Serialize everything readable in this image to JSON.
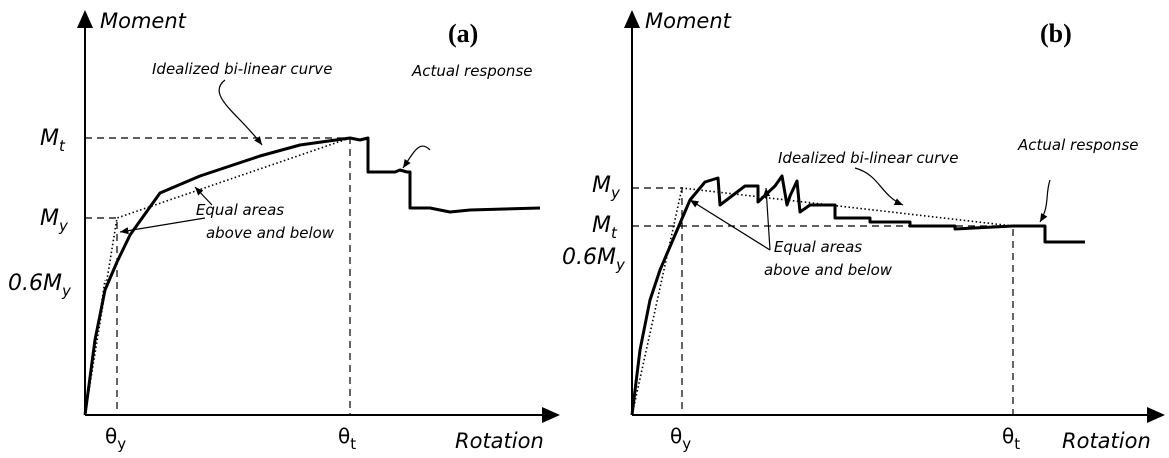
{
  "panels": [
    {
      "label": "(a)",
      "y_axis": "Moment",
      "x_axis": "Rotation",
      "y_labels": [
        {
          "base": "M",
          "sub": "t"
        },
        {
          "base": "M",
          "sub": "y"
        },
        {
          "base": "0.6M",
          "sub": "y"
        }
      ],
      "x_labels": [
        {
          "base": "θ",
          "sub": "y"
        },
        {
          "base": "θ",
          "sub": "t"
        }
      ],
      "annotations": [
        "Idealized bi-linear curve",
        "Actual response",
        "Equal areas",
        "above and below"
      ]
    },
    {
      "label": "(b)",
      "y_axis": "Moment",
      "x_axis": "Rotation",
      "y_labels": [
        {
          "base": "M",
          "sub": "y"
        },
        {
          "base": "M",
          "sub": "t"
        },
        {
          "base": "0.6M",
          "sub": "y"
        }
      ],
      "x_labels": [
        {
          "base": "θ",
          "sub": "y"
        },
        {
          "base": "θ",
          "sub": "t"
        }
      ],
      "annotations": [
        "Idealized bi-linear curve",
        "Actual response",
        "Equal areas",
        "above and below"
      ]
    }
  ]
}
